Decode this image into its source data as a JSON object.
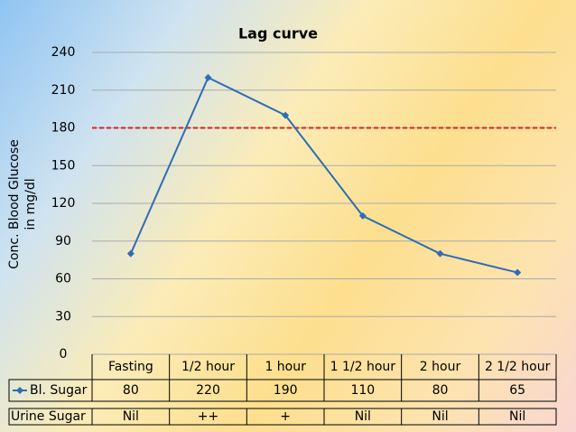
{
  "chart_data": {
    "type": "line",
    "title": "Lag curve",
    "y_label": [
      "Conc. Blood Glucose",
      "in mg/dl"
    ],
    "categories": [
      "Fasting",
      "1/2 hour",
      "1 hour",
      "1 1/2 hour",
      "2 hour",
      "2 1/2 hour"
    ],
    "series": [
      {
        "name": "Bl. Sugar",
        "color": "#2f6db5",
        "values": [
          80,
          220,
          190,
          110,
          80,
          65
        ]
      }
    ],
    "extra_rows": [
      {
        "name": "Urine Sugar",
        "values": [
          "Nil",
          "++",
          "+",
          "Nil",
          "Nil",
          "Nil"
        ]
      }
    ],
    "threshold": {
      "value": 180,
      "color": "#e02020"
    },
    "ylim": [
      0,
      240
    ],
    "yticks": [
      0,
      30,
      60,
      90,
      120,
      150,
      180,
      210,
      240
    ],
    "grid": true
  }
}
